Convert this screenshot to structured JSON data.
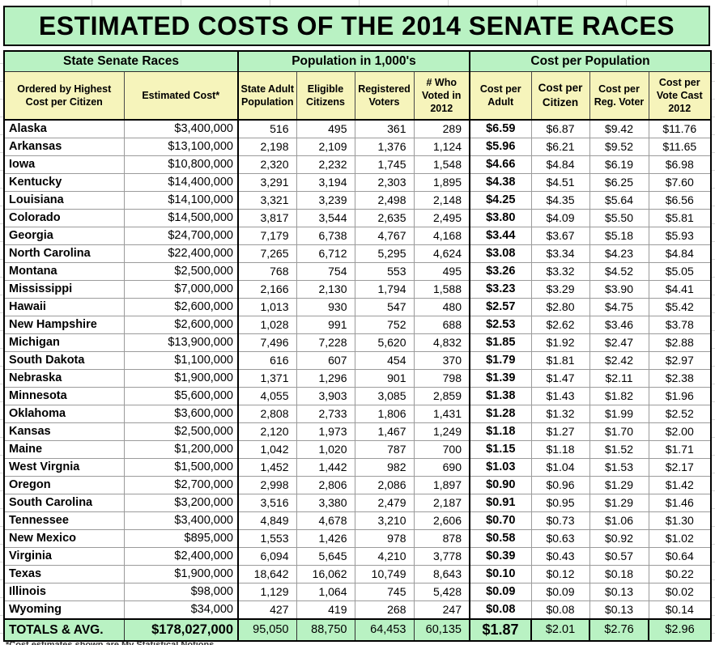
{
  "colors": {
    "header_green": "#b9f2c3",
    "subheader_yellow": "#f6f4bb",
    "heavy_border": "#000000",
    "grid_gray": "#9b9b9b"
  },
  "chart_data": {
    "type": "table",
    "title": "ESTIMATED COSTS OF THE 2014 SENATE RACES",
    "column_groups": [
      {
        "label": "State Senate Races",
        "span": 2
      },
      {
        "label": "Population in 1,000's",
        "span": 4
      },
      {
        "label": "Cost per Population",
        "span": 4
      }
    ],
    "columns": [
      "Ordered by Highest Cost per Citizen",
      "Estimated Cost*",
      "State Adult Population",
      "Eligible Citizens",
      "Registered Voters",
      "# Who Voted in 2012",
      "Cost per Adult",
      "Cost per Citizen",
      "Cost per Reg. Voter",
      "Cost per Vote Cast 2012"
    ],
    "rows": [
      [
        "Alaska",
        "$3,400,000",
        "516",
        "495",
        "361",
        "289",
        "$6.59",
        "$6.87",
        "$9.42",
        "$11.76"
      ],
      [
        "Arkansas",
        "$13,100,000",
        "2,198",
        "2,109",
        "1,376",
        "1,124",
        "$5.96",
        "$6.21",
        "$9.52",
        "$11.65"
      ],
      [
        "Iowa",
        "$10,800,000",
        "2,320",
        "2,232",
        "1,745",
        "1,548",
        "$4.66",
        "$4.84",
        "$6.19",
        "$6.98"
      ],
      [
        "Kentucky",
        "$14,400,000",
        "3,291",
        "3,194",
        "2,303",
        "1,895",
        "$4.38",
        "$4.51",
        "$6.25",
        "$7.60"
      ],
      [
        "Louisiana",
        "$14,100,000",
        "3,321",
        "3,239",
        "2,498",
        "2,148",
        "$4.25",
        "$4.35",
        "$5.64",
        "$6.56"
      ],
      [
        "Colorado",
        "$14,500,000",
        "3,817",
        "3,544",
        "2,635",
        "2,495",
        "$3.80",
        "$4.09",
        "$5.50",
        "$5.81"
      ],
      [
        "Georgia",
        "$24,700,000",
        "7,179",
        "6,738",
        "4,767",
        "4,168",
        "$3.44",
        "$3.67",
        "$5.18",
        "$5.93"
      ],
      [
        "North Carolina",
        "$22,400,000",
        "7,265",
        "6,712",
        "5,295",
        "4,624",
        "$3.08",
        "$3.34",
        "$4.23",
        "$4.84"
      ],
      [
        "Montana",
        "$2,500,000",
        "768",
        "754",
        "553",
        "495",
        "$3.26",
        "$3.32",
        "$4.52",
        "$5.05"
      ],
      [
        "Mississippi",
        "$7,000,000",
        "2,166",
        "2,130",
        "1,794",
        "1,588",
        "$3.23",
        "$3.29",
        "$3.90",
        "$4.41"
      ],
      [
        "Hawaii",
        "$2,600,000",
        "1,013",
        "930",
        "547",
        "480",
        "$2.57",
        "$2.80",
        "$4.75",
        "$5.42"
      ],
      [
        "New Hampshire",
        "$2,600,000",
        "1,028",
        "991",
        "752",
        "688",
        "$2.53",
        "$2.62",
        "$3.46",
        "$3.78"
      ],
      [
        "Michigan",
        "$13,900,000",
        "7,496",
        "7,228",
        "5,620",
        "4,832",
        "$1.85",
        "$1.92",
        "$2.47",
        "$2.88"
      ],
      [
        "South Dakota",
        "$1,100,000",
        "616",
        "607",
        "454",
        "370",
        "$1.79",
        "$1.81",
        "$2.42",
        "$2.97"
      ],
      [
        "Nebraska",
        "$1,900,000",
        "1,371",
        "1,296",
        "901",
        "798",
        "$1.39",
        "$1.47",
        "$2.11",
        "$2.38"
      ],
      [
        "Minnesota",
        "$5,600,000",
        "4,055",
        "3,903",
        "3,085",
        "2,859",
        "$1.38",
        "$1.43",
        "$1.82",
        "$1.96"
      ],
      [
        "Oklahoma",
        "$3,600,000",
        "2,808",
        "2,733",
        "1,806",
        "1,431",
        "$1.28",
        "$1.32",
        "$1.99",
        "$2.52"
      ],
      [
        "Kansas",
        "$2,500,000",
        "2,120",
        "1,973",
        "1,467",
        "1,249",
        "$1.18",
        "$1.27",
        "$1.70",
        "$2.00"
      ],
      [
        "Maine",
        "$1,200,000",
        "1,042",
        "1,020",
        "787",
        "700",
        "$1.15",
        "$1.18",
        "$1.52",
        "$1.71"
      ],
      [
        "West Virgnia",
        "$1,500,000",
        "1,452",
        "1,442",
        "982",
        "690",
        "$1.03",
        "$1.04",
        "$1.53",
        "$2.17"
      ],
      [
        "Oregon",
        "$2,700,000",
        "2,998",
        "2,806",
        "2,086",
        "1,897",
        "$0.90",
        "$0.96",
        "$1.29",
        "$1.42"
      ],
      [
        "South Carolina",
        "$3,200,000",
        "3,516",
        "3,380",
        "2,479",
        "2,187",
        "$0.91",
        "$0.95",
        "$1.29",
        "$1.46"
      ],
      [
        "Tennessee",
        "$3,400,000",
        "4,849",
        "4,678",
        "3,210",
        "2,606",
        "$0.70",
        "$0.73",
        "$1.06",
        "$1.30"
      ],
      [
        "New Mexico",
        "$895,000",
        "1,553",
        "1,426",
        "978",
        "878",
        "$0.58",
        "$0.63",
        "$0.92",
        "$1.02"
      ],
      [
        "Virginia",
        "$2,400,000",
        "6,094",
        "5,645",
        "4,210",
        "3,778",
        "$0.39",
        "$0.43",
        "$0.57",
        "$0.64"
      ],
      [
        "Texas",
        "$1,900,000",
        "18,642",
        "16,062",
        "10,749",
        "8,643",
        "$0.10",
        "$0.12",
        "$0.18",
        "$0.22"
      ],
      [
        "Illinois",
        "$98,000",
        "1,129",
        "1,064",
        "745",
        "5,428",
        "$0.09",
        "$0.09",
        "$0.13",
        "$0.02"
      ],
      [
        "Wyoming",
        "$34,000",
        "427",
        "419",
        "268",
        "247",
        "$0.08",
        "$0.08",
        "$0.13",
        "$0.14"
      ]
    ],
    "totals_row": [
      "TOTALS & AVG.",
      "$178,027,000",
      "95,050",
      "88,750",
      "64,453",
      "60,135",
      "$1.87",
      "$2.01",
      "$2.76",
      "$2.96"
    ],
    "footnote": "*Cost estimates shown are My Statistical Notions"
  }
}
